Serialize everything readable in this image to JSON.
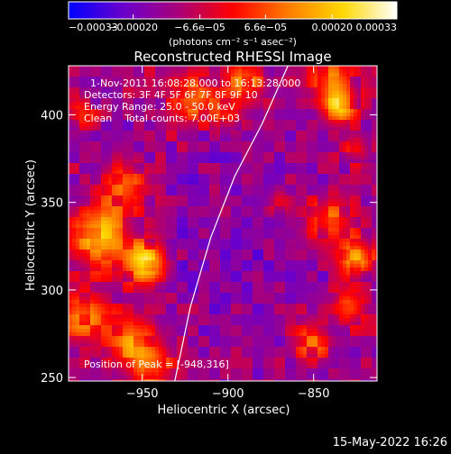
{
  "chart_data": {
    "type": "heatmap",
    "title": "Reconstructed RHESSI Image",
    "xlabel": "Heliocentric X (arcsec)",
    "ylabel": "Heliocentric Y (arcsec)",
    "xlim": [
      -993,
      -813
    ],
    "ylim": [
      248,
      428
    ],
    "x_ticks": [
      -950,
      -900,
      -850
    ],
    "x_tick_labels": [
      "−950",
      "−900",
      "−850"
    ],
    "y_ticks": [
      250,
      300,
      350,
      400
    ],
    "y_tick_labels": [
      "250",
      "300",
      "350",
      "400"
    ],
    "colorbar": {
      "unit_label": "(photons cm⁻² s⁻¹ asec⁻²)",
      "min": -0.00033,
      "max": 0.00033,
      "tick_values": [
        -0.00033,
        -0.0002,
        -6.6e-05,
        6.6e-05,
        0.0002,
        0.00033
      ],
      "tick_labels": [
        "−0.00033",
        "−0.00020",
        "−6.6e−05",
        "6.6e−05",
        "0.00020",
        "0.00033"
      ],
      "colors": [
        "#0000ff",
        "#6a00cc",
        "#a8007a",
        "#ff0000",
        "#ff7a00",
        "#ffd800",
        "#ffffff"
      ]
    },
    "annotations": [
      "1-Nov-2011 16:08:28.000 to 16:13:28.000",
      "Detectors: 3F 4F 5F 6F 7F 8F 9F 10",
      "Energy Range: 25.0 - 50.0 keV",
      "Clean    Total counts: 7.00E+03"
    ],
    "peak_label": "Position of Peak = [-948,316]",
    "peak": [
      -948,
      316
    ],
    "limb_curve": [
      [
        -931,
        248
      ],
      [
        -922,
        290
      ],
      [
        -910,
        330
      ],
      [
        -896,
        365
      ],
      [
        -880,
        395
      ],
      [
        -865,
        428
      ]
    ]
  },
  "footer": {
    "timestamp": "15-May-2022 16:26"
  }
}
